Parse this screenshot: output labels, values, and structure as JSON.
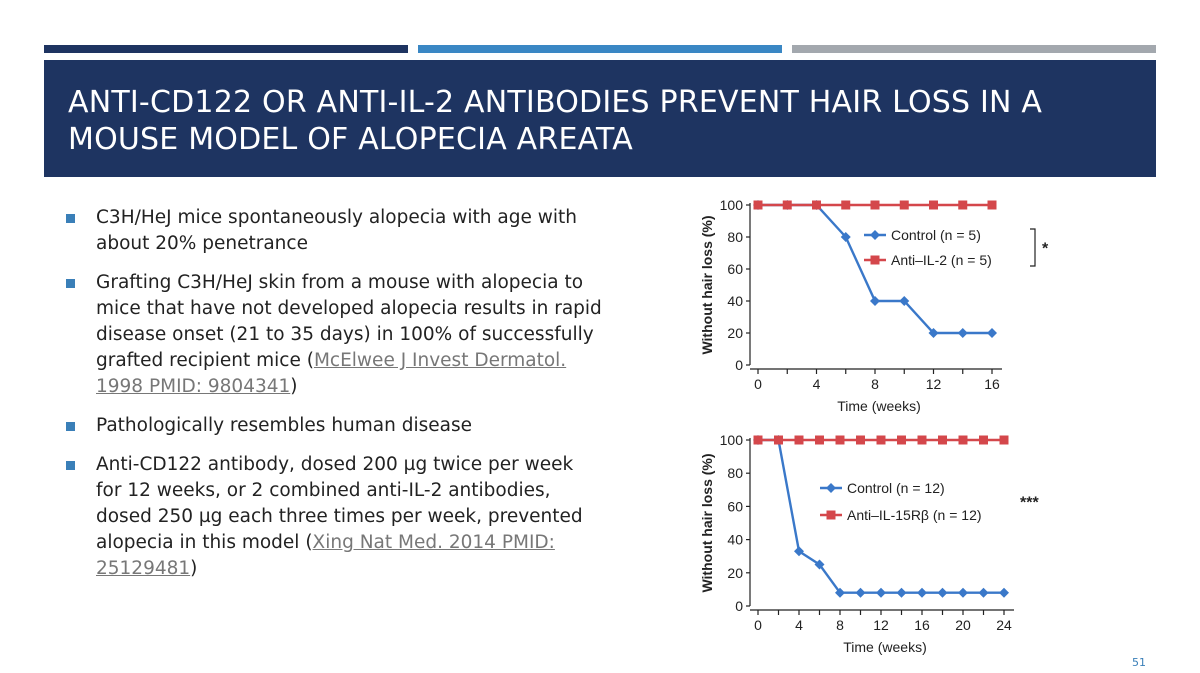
{
  "slide": {
    "title_line1": "ANTI-CD122 OR ANTI-IL-2 ANTIBODIES PREVENT HAIR LOSS IN A",
    "title_line2": "MOUSE MODEL OF  ALOPECIA AREATA",
    "page_number": "51",
    "colors": {
      "header": "#1e3461",
      "bar1": "#1e3461",
      "bar2": "#3a87c4",
      "bar3": "#a3a8ae",
      "bullet": "#3a7fb8"
    }
  },
  "bullets": [
    {
      "text": "C3H/HeJ mice spontaneously alopecia with age with about 20% penetrance"
    },
    {
      "text_before": "Grafting C3H/HeJ skin from a mouse with alopecia to mice that have not developed alopecia results in rapid disease onset (21 to 35 days) in 100% of successfully grafted recipient mice (",
      "link": "McElwee J Invest Dermatol. 1998 PMID: 9804341",
      "text_after": ")"
    },
    {
      "text": "Pathologically resembles human disease"
    },
    {
      "text_before": "Anti-CD122 antibody, dosed 200 µg twice per week for 12 weeks, or 2 combined anti-IL-2 antibodies, dosed 250 µg each three times per week,  prevented alopecia in this model (",
      "link": "Xing Nat Med. 2014 PMID: 25129481",
      "text_after": ")"
    }
  ],
  "chart_data": [
    {
      "type": "line",
      "xlabel": "Time (weeks)",
      "ylabel": "Without hair loss (%)",
      "xlim": [
        0,
        16
      ],
      "ylim": [
        0,
        100
      ],
      "xticks": [
        0,
        4,
        8,
        12,
        16
      ],
      "yticks": [
        0,
        20,
        40,
        60,
        80,
        100
      ],
      "legend_position": "right",
      "significance": "*",
      "series": [
        {
          "name": "Control",
          "n_label": "(n = 5)",
          "color": "#3a78c9",
          "marker": "diamond",
          "x": [
            0,
            2,
            4,
            6,
            8,
            10,
            12,
            14,
            16
          ],
          "y": [
            100,
            100,
            100,
            80,
            40,
            40,
            20,
            20,
            20
          ]
        },
        {
          "name": "Anti–IL-2",
          "n_label": "(n = 5)",
          "color": "#d4474b",
          "marker": "square",
          "x": [
            0,
            2,
            4,
            6,
            8,
            10,
            12,
            14,
            16
          ],
          "y": [
            100,
            100,
            100,
            100,
            100,
            100,
            100,
            100,
            100
          ]
        }
      ]
    },
    {
      "type": "line",
      "xlabel": "Time (weeks)",
      "ylabel": "Without hair loss (%)",
      "xlim": [
        0,
        24
      ],
      "ylim": [
        0,
        100
      ],
      "xticks": [
        0,
        4,
        8,
        12,
        16,
        20,
        24
      ],
      "yticks": [
        0,
        20,
        40,
        60,
        80,
        100
      ],
      "legend_position": "right",
      "significance": "***",
      "series": [
        {
          "name": "Control",
          "n_label": "(n = 12)",
          "color": "#3a78c9",
          "marker": "diamond",
          "x": [
            0,
            2,
            4,
            6,
            8,
            10,
            12,
            14,
            16,
            18,
            20,
            22,
            24
          ],
          "y": [
            100,
            100,
            33,
            25,
            8,
            8,
            8,
            8,
            8,
            8,
            8,
            8,
            8
          ]
        },
        {
          "name": "Anti–IL-15Rβ",
          "n_label": "(n = 12)",
          "color": "#d4474b",
          "marker": "square",
          "x": [
            0,
            2,
            4,
            6,
            8,
            10,
            12,
            14,
            16,
            18,
            20,
            22,
            24
          ],
          "y": [
            100,
            100,
            100,
            100,
            100,
            100,
            100,
            100,
            100,
            100,
            100,
            100,
            100
          ]
        }
      ]
    }
  ]
}
